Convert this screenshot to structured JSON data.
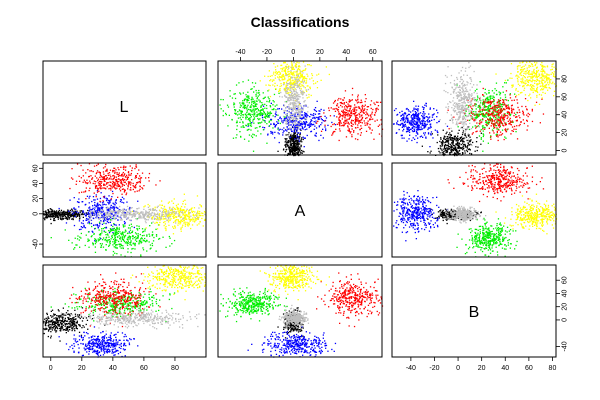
{
  "chart_data": {
    "type": "scatter",
    "subtype": "pairs-matrix",
    "title": "Classifications",
    "variables": [
      "L",
      "A",
      "B"
    ],
    "grid": false,
    "legend": "none",
    "axes": {
      "L": {
        "range": [
          -5,
          100
        ],
        "ticks": [
          0,
          20,
          40,
          60,
          80
        ]
      },
      "A": {
        "range": [
          -57,
          67
        ],
        "ticks": [
          -40,
          -20,
          0,
          20,
          40,
          60
        ]
      },
      "B": {
        "range": [
          -56,
          83
        ],
        "ticks": [
          -40,
          0,
          20,
          40,
          60,
          80
        ]
      }
    },
    "tick_labels": {
      "top_A": [
        "-40",
        "-20",
        "0",
        "20",
        "40",
        "60"
      ],
      "right_L": [
        "0",
        "20",
        "40",
        "60",
        "80"
      ],
      "left_A": [
        "-40",
        "0",
        "20",
        "40",
        "60"
      ],
      "bottom_L": [
        "0",
        "20",
        "40",
        "60",
        "80"
      ],
      "bottom_B": [
        "-40",
        "-20",
        "0",
        "20",
        "40",
        "60",
        "80"
      ],
      "right_B": [
        "-40",
        "0",
        "20",
        "40",
        "60"
      ]
    },
    "classes": [
      {
        "color": "#000000",
        "center": {
          "L": 5,
          "A": 0,
          "B": -3
        },
        "spread": {
          "L": 9,
          "A": 3,
          "B": 8
        }
      },
      {
        "color": "#0000ff",
        "center": {
          "L": 32,
          "A": 3,
          "B": -38
        },
        "spread": {
          "L": 9,
          "A": 12,
          "B": 9
        }
      },
      {
        "color": "#00ee00",
        "center": {
          "L": 45,
          "A": -32,
          "B": 25
        },
        "spread": {
          "L": 12,
          "A": 9,
          "B": 9
        }
      },
      {
        "color": "#ff0000",
        "center": {
          "L": 40,
          "A": 45,
          "B": 35
        },
        "spread": {
          "L": 11,
          "A": 10,
          "B": 13
        }
      },
      {
        "color": "#ffff00",
        "center": {
          "L": 82,
          "A": -2,
          "B": 65
        },
        "spread": {
          "L": 10,
          "A": 8,
          "B": 11
        }
      },
      {
        "color": "#bebebe",
        "center": {
          "L": 55,
          "A": 0,
          "B": 3
        },
        "spread": {
          "L": 17,
          "A": 4,
          "B": 6
        }
      }
    ],
    "points_per_class": 350
  }
}
